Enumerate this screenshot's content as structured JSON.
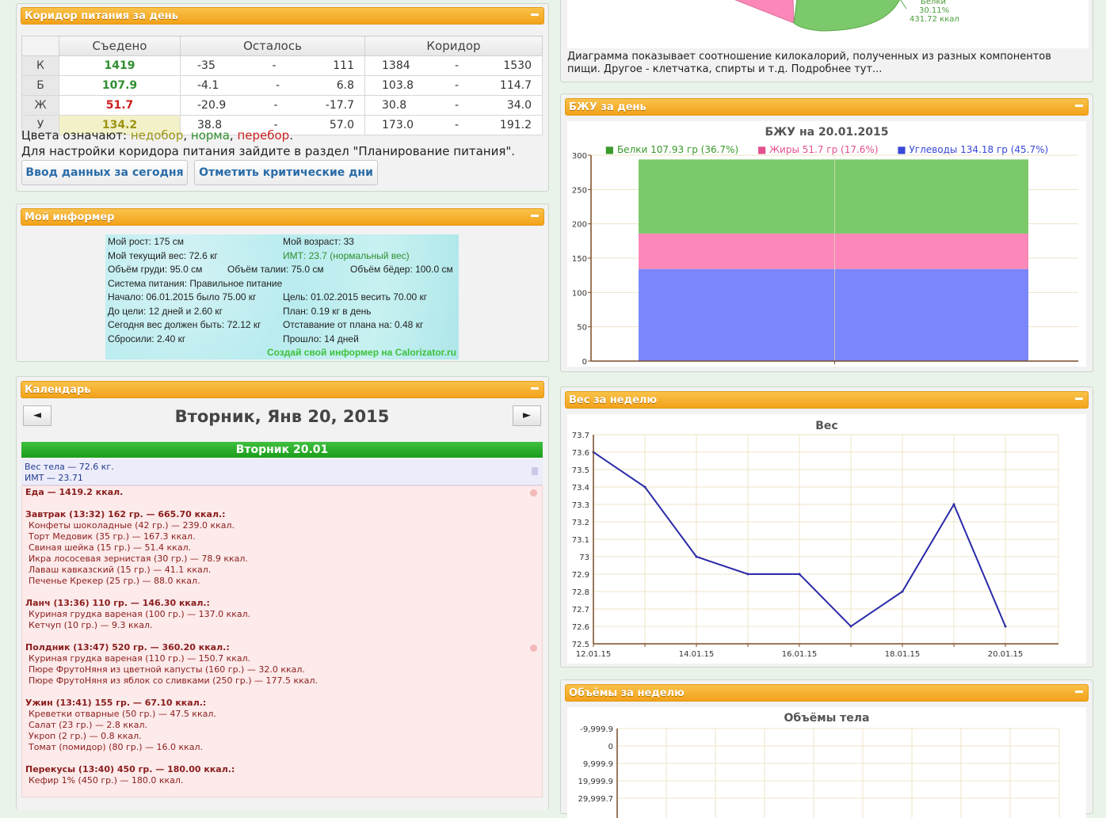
{
  "corridor": {
    "title": "Коридор питания за день",
    "headers": [
      "Съедено",
      "Осталось",
      "Коридор"
    ],
    "rows": [
      {
        "label": "К",
        "eaten": "1419",
        "rem_min": "-35",
        "rem_max": "111",
        "cor_min": "1384",
        "cor_max": "1530",
        "status": "norm"
      },
      {
        "label": "Б",
        "eaten": "107.9",
        "rem_min": "-4.1",
        "rem_max": "6.8",
        "cor_min": "103.8",
        "cor_max": "114.7",
        "status": "norm"
      },
      {
        "label": "Ж",
        "eaten": "51.7",
        "rem_min": "-20.9",
        "rem_max": "-17.7",
        "cor_min": "30.8",
        "cor_max": "34.0",
        "status": "over"
      },
      {
        "label": "У",
        "eaten": "134.2",
        "rem_min": "38.8",
        "rem_max": "57.0",
        "cor_min": "173.0",
        "cor_max": "191.2",
        "status": "under"
      }
    ],
    "dash": "-",
    "legend_prefix": "Цвета означают: ",
    "legend_under": "недобор",
    "legend_norm": "норма",
    "legend_over": "перебор",
    "comma": ", ",
    "dot": ".",
    "hint": "Для настройки коридора питания зайдите в раздел \"Планирование питания\".",
    "btn_enter": "Ввод данных за сегодня",
    "btn_critical": "Отметить критические дни"
  },
  "informer": {
    "title": "Мой информер",
    "height": "Мой рост: 175 см",
    "age": "Мой возраст: 33",
    "weight": "Мой текущий вес: 72.6 кг",
    "bmi": "ИМТ: 23.7 (нормальный вес)",
    "chest": "Объём груди: 95.0 см",
    "waist": "Объём талии: 75.0 см",
    "hips": "Объём бёдер: 100.0 см",
    "system": "Система питания: Правильное питание",
    "start": "Начало: 06.01.2015 было 75.00 кг",
    "goal": "Цель: 01.02.2015 весить 70.00 кг",
    "to_goal": "До цели: 12 дней и 2.60 кг",
    "plan": "План: 0.19 кг в день",
    "should": "Сегодня вес должен быть: 72.12 кг",
    "lag": "Отставание от плана на: 0.48 кг",
    "lost": "Сбросили: 2.40 кг",
    "passed": "Прошло: 14 дней",
    "link": "Создай свой информер на Calorizator.ru"
  },
  "calendar": {
    "title": "Календарь",
    "prev": "◄",
    "next": "►",
    "date": "Вторник, Янв 20, 2015",
    "day": "Вторник 20.01",
    "weight_line": "Вес тела — 72.6 кг.",
    "bmi_line": "ИМТ — 23.71",
    "food_total": "Еда — 1419.2 ккал.",
    "lines": [
      {
        "t": "Завтрак (13:32) 162 гр. — 665.70 ккал.:",
        "h": true
      },
      {
        "t": "Конфеты шоколадные (42 гр.) — 239.0 ккал."
      },
      {
        "t": "Торт Медовик (35 гр.) — 167.3 ккал."
      },
      {
        "t": "Свиная шейка (15 гр.) — 51.4 ккал."
      },
      {
        "t": "Икра лососевая зернистая (30 гр.) — 78.9 ккал."
      },
      {
        "t": "Лаваш кавказский (15 гр.) — 41.1 ккал."
      },
      {
        "t": "Печенье Крекер (25 гр.) — 88.0 ккал."
      },
      {
        "t": "Ланч (13:36) 110 гр. — 146.30 ккал.:",
        "h": true
      },
      {
        "t": "Куриная грудка вареная (100 гр.) — 137.0 ккал."
      },
      {
        "t": "Кетчуп (10 гр.) — 9.3 ккал."
      },
      {
        "t": "Полдник (13:47) 520 гр. — 360.20 ккал.:",
        "h": true
      },
      {
        "t": "Куриная грудка вареная (110 гр.) — 150.7 ккал."
      },
      {
        "t": "Пюре ФрутоНяня из цветной капусты (160 гр.) — 32.0 ккал."
      },
      {
        "t": "Пюре ФрутоНяня из яблок со сливками (250 гр.) — 177.5 ккал."
      },
      {
        "t": "Ужин (13:41) 155 гр. — 67.10 ккал.:",
        "h": true
      },
      {
        "t": "Креветки отварные (50 гр.) — 47.5 ккал."
      },
      {
        "t": "Салат (23 гр.) — 2.8 ккал."
      },
      {
        "t": "Укроп (2 гр.) — 0.8 ккал."
      },
      {
        "t": "Томат (помидор) (80 гр.) — 16.0 ккал."
      },
      {
        "t": "Перекусы (13:40) 450 гр. — 180.00 ккал.:",
        "h": true
      },
      {
        "t": "Кефир 1% (450 гр.) — 180.0 ккал."
      }
    ]
  },
  "pie": {
    "label_name": "Белки",
    "label_pct": "30.11%",
    "label_kcal": "431.72 ккал",
    "description": "Диаграмма показывает соотношение килокалорий, полученных из разных компонентов пищи. Другое - клетчатка, спирты и т.д. Подробнее тут..."
  },
  "bju": {
    "panel_title": "БЖУ за день"
  },
  "weight": {
    "panel_title": "Вес за неделю"
  },
  "volumes": {
    "panel_title": "Объёмы за неделю"
  },
  "colors": {
    "protein": "#7bc96a",
    "fat": "#fb88b8",
    "carbs": "#7b86fc",
    "line": "#2a2aa8"
  },
  "chart_data": [
    {
      "type": "bar",
      "title": "БЖУ на 20.01.2015",
      "categories": [
        "20.01.2015"
      ],
      "stacked": true,
      "series": [
        {
          "name": "Белки 107.93 гр (36.7%)",
          "values": [
            107.93
          ]
        },
        {
          "name": "Жиры 51.7 гр (17.6%)",
          "values": [
            51.7
          ]
        },
        {
          "name": "Углеводы 134.18 гр (45.7%)",
          "values": [
            134.18
          ]
        }
      ],
      "ylim": [
        0,
        300
      ],
      "yticks": [
        "0",
        "50",
        "100",
        "150",
        "200",
        "250",
        "300"
      ]
    },
    {
      "type": "line",
      "title": "Вес",
      "x": [
        "12.01.15",
        "13.01.15",
        "14.01.15",
        "15.01.15",
        "16.01.15",
        "17.01.15",
        "18.01.15",
        "19.01.15",
        "20.01.15"
      ],
      "xticks": [
        "12.01.15",
        "14.01.15",
        "16.01.15",
        "18.01.15",
        "20.01.15"
      ],
      "values": [
        73.6,
        73.4,
        73.0,
        72.9,
        72.9,
        72.6,
        72.8,
        73.3,
        72.6
      ],
      "ylim": [
        72.5,
        73.7
      ],
      "yticks": [
        "72.5",
        "72.6",
        "72.7",
        "72.8",
        "72.9",
        "73",
        "73.1",
        "73.2",
        "73.3",
        "73.4",
        "73.5",
        "73.6",
        "73.7"
      ]
    },
    {
      "type": "line",
      "title": "Объёмы тела",
      "yticks": [
        "-9,999.9",
        "0",
        "9,999.9",
        "19,999.9",
        "29,999.7"
      ]
    }
  ]
}
